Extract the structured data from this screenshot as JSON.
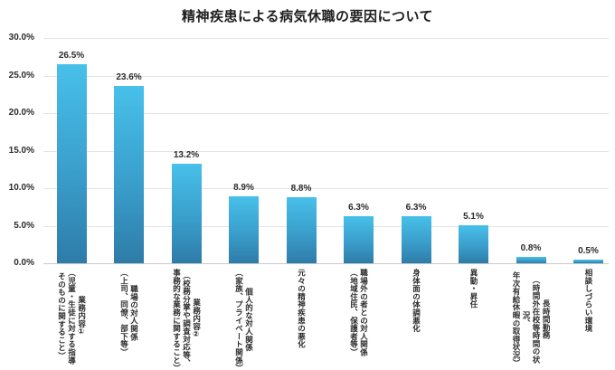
{
  "title": "精神疾患による病気休職の要因について",
  "colors": {
    "background": "#ffffff",
    "bar_gradient_top": "#47c0ea",
    "bar_gradient_mid": "#3a9ecb",
    "bar_gradient_bottom": "#2e7ca8",
    "gridline": "#e4e4e4",
    "axis_line": "#c9c9c9",
    "text": "#2b2b2b"
  },
  "chart_data": {
    "type": "bar",
    "title": "精神疾患による病気休職の要因について",
    "categories": [
      "業務内容①\n（児童・生徒に対する指導\nそのものに関すること）",
      "職場の対人関係\n（上司、同僚、部下等）",
      "業務内容②\n（校務分掌や調査対応等、\n事務的な業務に関すること）",
      "個人的な対人関係\n（家族、プライベート関係）",
      "元々の精神疾患の悪化",
      "職場外の者との対人関係\n（地域住民、保護者等）",
      "身体面の体調悪化",
      "異動・昇任",
      "長時間勤務\n（時間外在校等時間の状況、\n年次有給休暇の取得状況）",
      "相談しづらい環境"
    ],
    "values": [
      26.5,
      23.6,
      13.2,
      8.9,
      8.8,
      6.3,
      6.3,
      5.1,
      0.8,
      0.5
    ],
    "value_labels": [
      "26.5%",
      "23.6%",
      "13.2%",
      "8.9%",
      "8.8%",
      "6.3%",
      "6.3%",
      "5.1%",
      "0.8%",
      "0.5%"
    ],
    "y_ticks": [
      {
        "label": "30.0%",
        "value": 30
      },
      {
        "label": "25.0%",
        "value": 25
      },
      {
        "label": "20.0%",
        "value": 20
      },
      {
        "label": "15.0%",
        "value": 15
      },
      {
        "label": "10.0%",
        "value": 10
      },
      {
        "label": "5.0%",
        "value": 5
      },
      {
        "label": "0.0%",
        "value": 0
      }
    ],
    "ylim": [
      0,
      30
    ],
    "xlabel": "",
    "ylabel": "",
    "grid": true,
    "legend": "none"
  }
}
